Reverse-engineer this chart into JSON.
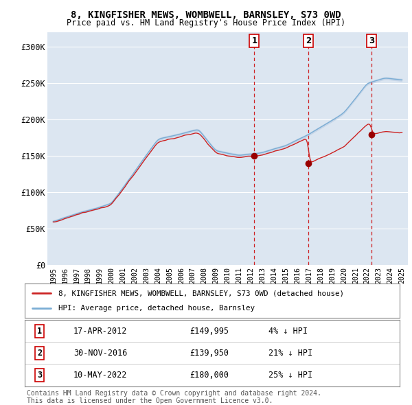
{
  "title": "8, KINGFISHER MEWS, WOMBWELL, BARNSLEY, S73 0WD",
  "subtitle": "Price paid vs. HM Land Registry's House Price Index (HPI)",
  "ylim": [
    0,
    320000
  ],
  "yticks": [
    0,
    50000,
    100000,
    150000,
    200000,
    250000,
    300000
  ],
  "ytick_labels": [
    "£0",
    "£50K",
    "£100K",
    "£150K",
    "£200K",
    "£250K",
    "£300K"
  ],
  "background_color": "#ffffff",
  "plot_bg_color": "#dce6f1",
  "grid_color": "#ffffff",
  "hpi_color": "#7aadd4",
  "hpi_fill_color": "#c5d5e8",
  "price_color": "#cc2222",
  "sale_marker_color": "#990000",
  "vline_color": "#cc0000",
  "sale_points": [
    {
      "year": 2012.29,
      "price": 149995,
      "label": "1"
    },
    {
      "year": 2016.92,
      "price": 139950,
      "label": "2"
    },
    {
      "year": 2022.37,
      "price": 180000,
      "label": "3"
    }
  ],
  "table_rows": [
    {
      "num": "1",
      "date": "17-APR-2012",
      "price": "£149,995",
      "pct": "4% ↓ HPI"
    },
    {
      "num": "2",
      "date": "30-NOV-2016",
      "price": "£139,950",
      "pct": "21% ↓ HPI"
    },
    {
      "num": "3",
      "date": "10-MAY-2022",
      "price": "£180,000",
      "pct": "25% ↓ HPI"
    }
  ],
  "legend_entries": [
    "8, KINGFISHER MEWS, WOMBWELL, BARNSLEY, S73 0WD (detached house)",
    "HPI: Average price, detached house, Barnsley"
  ],
  "footnote": "Contains HM Land Registry data © Crown copyright and database right 2024.\nThis data is licensed under the Open Government Licence v3.0.",
  "start_year": 1995,
  "end_year": 2025
}
